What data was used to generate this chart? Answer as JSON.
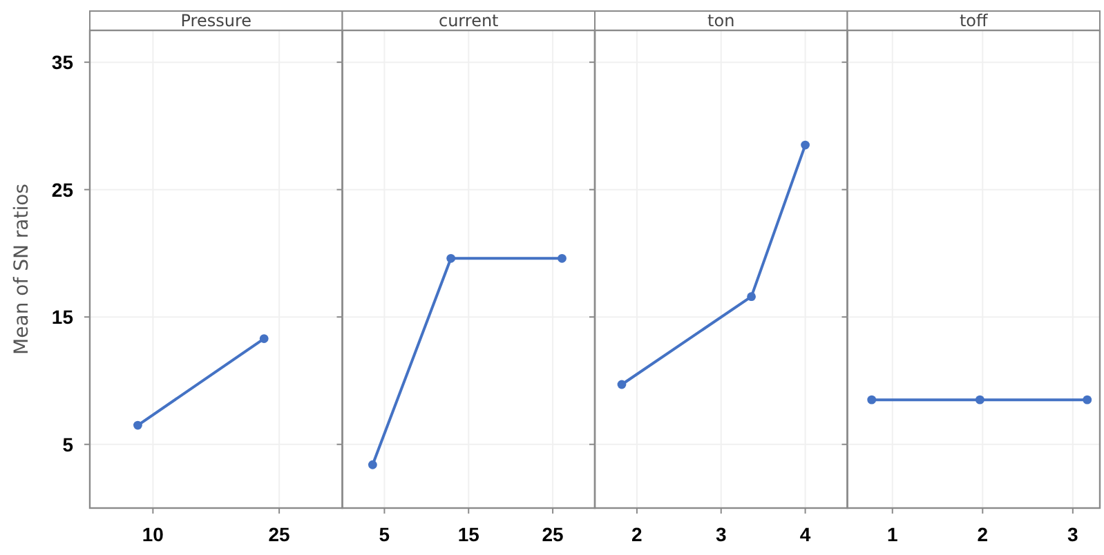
{
  "chart_data": [
    {
      "type": "line",
      "title": "Pressure",
      "ylabel": "Mean of SN ratios",
      "x": [
        8.2,
        23.2
      ],
      "values": [
        6.5,
        13.3
      ],
      "color": "#4472c4",
      "xlim": [
        2.5,
        32.5
      ],
      "xticks": [
        10,
        25
      ],
      "ylim": [
        0,
        37.5
      ],
      "yticks": [
        5,
        15,
        25,
        35
      ],
      "grid": true,
      "marker": "circle"
    },
    {
      "type": "line",
      "title": "current",
      "x": [
        3.6,
        12.9,
        26.1
      ],
      "values": [
        3.4,
        19.6,
        19.6
      ],
      "color": "#4472c4",
      "xlim": [
        0,
        30
      ],
      "xticks": [
        5,
        15,
        25
      ],
      "ylim": [
        0,
        37.5
      ],
      "yticks": [
        5,
        15,
        25,
        35
      ],
      "grid": true,
      "marker": "circle",
      "tick_labels": "x"
    },
    {
      "type": "line",
      "title": "ton",
      "x": [
        1.82,
        3.36,
        4
      ],
      "values": [
        9.7,
        16.6,
        28.5
      ],
      "color": "#4472c4",
      "xlim": [
        1.5,
        4.5
      ],
      "xticks": [
        2,
        3,
        4
      ],
      "ylim": [
        0,
        37.5
      ],
      "yticks": [
        5,
        15,
        25,
        35
      ],
      "grid": true,
      "marker": "circle",
      "tick_labels": "x"
    },
    {
      "type": "line",
      "title": "toff",
      "x": [
        0.77,
        1.97,
        3.16
      ],
      "values": [
        8.5,
        8.5,
        8.5
      ],
      "color": "#4472c4",
      "xlim": [
        0.5,
        3.3
      ],
      "xticks": [
        1,
        2,
        3
      ],
      "ylim": [
        0,
        37.5
      ],
      "yticks": [
        5,
        15,
        25,
        35
      ],
      "grid": true,
      "marker": "circle",
      "tick_labels": "x"
    }
  ]
}
